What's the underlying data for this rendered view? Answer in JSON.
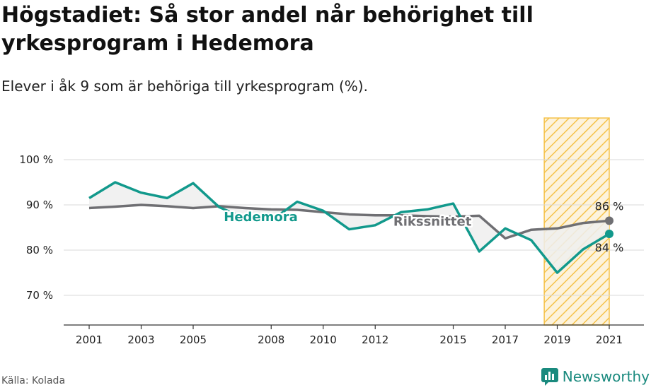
{
  "title": "Högstadiet: Så stor andel når behörighet till yrkesprogram i Hedemora",
  "subtitle": "Elever i åk 9 som är behöriga till yrkesprogram (%).",
  "source": "Källa: Kolada",
  "brand": "Newsworthy",
  "colors": {
    "hedemora": "#12998c",
    "riket": "#6f6f73",
    "highlight": "#f5c24a",
    "grid": "#d9d9d9"
  },
  "chart_data": {
    "type": "line",
    "x": [
      2001,
      2002,
      2003,
      2004,
      2005,
      2006,
      2007,
      2008,
      2009,
      2010,
      2011,
      2012,
      2013,
      2014,
      2015,
      2016,
      2017,
      2018,
      2019,
      2020,
      2021
    ],
    "x_ticks": [
      "2001",
      "2003",
      "2005",
      "2008",
      "2010",
      "2012",
      "2015",
      "2017",
      "2019",
      "2021"
    ],
    "y_ticks": [
      "70 %",
      "80 %",
      "90 %",
      "100 %"
    ],
    "ylim": [
      64,
      105
    ],
    "xlim": [
      2000,
      2022
    ],
    "highlight_range": [
      2018.5,
      2021
    ],
    "series": [
      {
        "name": "Hedemora",
        "values": [
          91.5,
          95,
          92.7,
          91.5,
          94.8,
          89.5,
          87,
          86.5,
          90.7,
          88.7,
          84.6,
          85.5,
          88.4,
          89,
          90.3,
          79.7,
          84.8,
          82.2,
          75,
          80.2,
          83.6
        ],
        "end_label": "84 %"
      },
      {
        "name": "Rikssnittet",
        "values": [
          89.3,
          89.6,
          90,
          89.7,
          89.3,
          89.7,
          89.3,
          89,
          88.9,
          88.4,
          87.9,
          87.7,
          87.7,
          87.5,
          87.4,
          87.6,
          82.6,
          84.5,
          84.8,
          86,
          86.5
        ],
        "end_label": "86 %"
      }
    ]
  }
}
